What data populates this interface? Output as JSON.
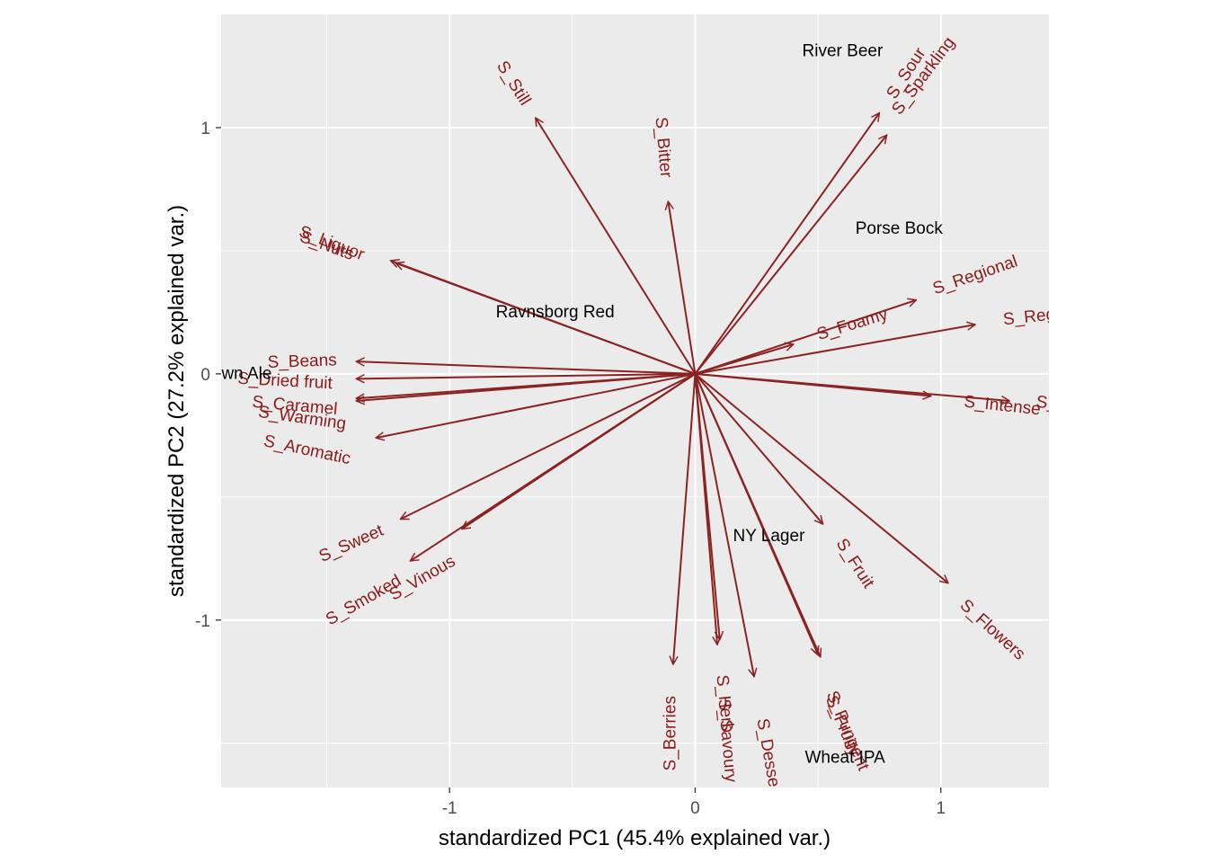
{
  "chart_data": {
    "type": "scatter",
    "subtype": "pca-biplot",
    "title": "",
    "xlabel": "standardized PC1 (45.4% explained var.)",
    "ylabel": "standardized PC2 (27.2% explained var.)",
    "xlim": [
      -1.93,
      1.44
    ],
    "ylim": [
      -1.68,
      1.46
    ],
    "x_ticks": [
      -1,
      0,
      1
    ],
    "x_tick_labels": [
      "-1",
      "0",
      "1"
    ],
    "y_ticks": [
      -1,
      0,
      1
    ],
    "y_tick_labels": [
      "-1",
      "0",
      "1"
    ],
    "grid": true,
    "legend": "none",
    "colors": {
      "panel": "#ebebeb",
      "grid": "#ffffff",
      "arrow": "#8b2323",
      "var_label": "#8b1a1a",
      "obs_label": "#000000"
    },
    "observations": [
      {
        "label": "River Beer",
        "x": 0.6,
        "y": 1.31
      },
      {
        "label": "Porse Bock",
        "x": 0.83,
        "y": 0.59
      },
      {
        "label": "Ravnsborg Red",
        "x": -0.57,
        "y": 0.25
      },
      {
        "label": "Brown Ale",
        "x": -1.88,
        "y": 0.0
      },
      {
        "label": "NY Lager",
        "x": 0.3,
        "y": -0.66
      },
      {
        "label": "Wheat IPA",
        "x": 0.61,
        "y": -1.56
      }
    ],
    "loadings": [
      {
        "label": "S_Still",
        "x": -0.65,
        "y": 1.04,
        "label_x": -0.74,
        "label_y": 1.18,
        "angle": 58
      },
      {
        "label": "S_Bitter",
        "x": -0.11,
        "y": 0.7,
        "label_x": -0.13,
        "label_y": 0.92,
        "angle": 85
      },
      {
        "label": "S_Sour",
        "x": 0.75,
        "y": 1.06,
        "label_x": 0.86,
        "label_y": 1.22,
        "angle": -57
      },
      {
        "label": "S_Sparkling",
        "x": 0.78,
        "y": 0.97,
        "label_x": 0.93,
        "label_y": 1.21,
        "angle": -53
      },
      {
        "label": "S_Liquor",
        "x": -1.24,
        "y": 0.46,
        "label_x": -1.48,
        "label_y": 0.53,
        "angle": 21
      },
      {
        "label": "S_Nuts",
        "x": -1.22,
        "y": 0.45,
        "label_x": -1.5,
        "label_y": 0.52,
        "angle": 20
      },
      {
        "label": "S_Regional",
        "x": 0.9,
        "y": 0.3,
        "label_x": 1.14,
        "label_y": 0.4,
        "angle": -19
      },
      {
        "label": "S_Foamy",
        "x": 0.4,
        "y": 0.12,
        "label_x": 0.64,
        "label_y": 0.2,
        "angle": -17
      },
      {
        "label": "S_Reg",
        "x": 1.14,
        "y": 0.2,
        "label_x": 1.36,
        "label_y": 0.23,
        "angle": -6
      },
      {
        "label": "S_Beans",
        "x": -1.38,
        "y": 0.05,
        "label_x": -1.6,
        "label_y": 0.05,
        "angle": -2
      },
      {
        "label": "S_Dried fruit",
        "x": -1.38,
        "y": -0.02,
        "label_x": -1.67,
        "label_y": -0.03,
        "angle": 3
      },
      {
        "label": "S_Caramel",
        "x": -1.38,
        "y": -0.1,
        "label_x": -1.63,
        "label_y": -0.13,
        "angle": 5
      },
      {
        "label": "S_Warming",
        "x": -1.38,
        "y": -0.11,
        "label_x": -1.6,
        "label_y": -0.18,
        "angle": 8
      },
      {
        "label": "S_Aromatic",
        "x": -1.3,
        "y": -0.26,
        "label_x": -1.58,
        "label_y": -0.31,
        "angle": 12
      },
      {
        "label": "S_Intense",
        "x": 0.96,
        "y": -0.09,
        "label_x": 1.25,
        "label_y": -0.13,
        "angle": 6
      },
      {
        "label": "S_I",
        "x": 1.28,
        "y": -0.11,
        "label_x": 1.44,
        "label_y": -0.12,
        "angle": 6
      },
      {
        "label": "S_Fruit",
        "x": 0.52,
        "y": -0.61,
        "label_x": 0.65,
        "label_y": -0.77,
        "angle": 57
      },
      {
        "label": "S_Flowers",
        "x": 1.03,
        "y": -0.85,
        "label_x": 1.21,
        "label_y": -1.04,
        "angle": 42
      },
      {
        "label": "S_Sweet",
        "x": -1.2,
        "y": -0.59,
        "label_x": -1.4,
        "label_y": -0.69,
        "angle": -24
      },
      {
        "label": "S_Vinous",
        "x": -0.95,
        "y": -0.63,
        "label_x": -1.11,
        "label_y": -0.83,
        "angle": -30
      },
      {
        "label": "S_Smoked",
        "x": -1.16,
        "y": -0.76,
        "label_x": -1.35,
        "label_y": -0.92,
        "angle": -30
      },
      {
        "label": "S_Berries",
        "x": -0.09,
        "y": -1.18,
        "label_x": -0.1,
        "label_y": -1.46,
        "angle": -90
      },
      {
        "label": "S_Herb",
        "x": 0.09,
        "y": -1.1,
        "label_x": 0.12,
        "label_y": -1.34,
        "angle": 84
      },
      {
        "label": "S_Savoury",
        "x": 0.1,
        "y": -1.08,
        "label_x": 0.13,
        "label_y": -1.49,
        "angle": 85
      },
      {
        "label": "S_Dessert",
        "x": 0.24,
        "y": -1.23,
        "label_x": 0.3,
        "label_y": -1.56,
        "angle": 80
      },
      {
        "label": "S_Pungent",
        "x": 0.51,
        "y": -1.15,
        "label_x": 0.62,
        "label_y": -1.45,
        "angle": 67
      },
      {
        "label": "S_Fruity",
        "x": 0.5,
        "y": -1.14,
        "label_x": 0.6,
        "label_y": -1.43,
        "angle": 67
      }
    ]
  }
}
